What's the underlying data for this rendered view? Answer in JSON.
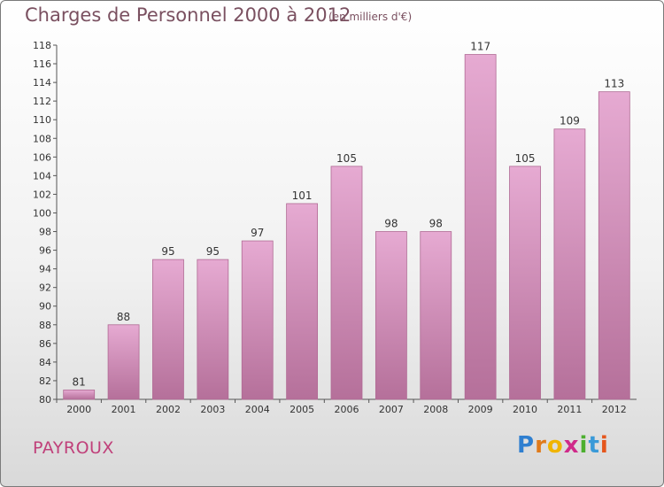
{
  "title": "Charges de Personnel 2000 à 2012",
  "subtitle": "(en milliers d'€)",
  "commune": "PAYROUX",
  "logo": {
    "letters": [
      "P",
      "r",
      "o",
      "x",
      "i",
      "t",
      "i"
    ],
    "colors": [
      "#2f7fd0",
      "#e07a1a",
      "#f0b400",
      "#d02a8a",
      "#4caf2f",
      "#3a9ad8",
      "#e5561c"
    ]
  },
  "colors": {
    "bar": "#dc9cc4",
    "bar_edge": "#b06a94",
    "title": "#7a5060",
    "commune": "#c0407a"
  },
  "chart_data": {
    "type": "bar",
    "title": "Charges de Personnel 2000 à 2012",
    "subtitle": "(en milliers d'€)",
    "categories": [
      "2000",
      "2001",
      "2002",
      "2003",
      "2004",
      "2005",
      "2006",
      "2007",
      "2008",
      "2009",
      "2010",
      "2011",
      "2012"
    ],
    "values": [
      81,
      88,
      95,
      95,
      97,
      101,
      105,
      98,
      98,
      117,
      105,
      109,
      113
    ],
    "ylim": [
      80,
      118
    ],
    "ytick_step": 2,
    "grid": false,
    "data_labels": true
  }
}
